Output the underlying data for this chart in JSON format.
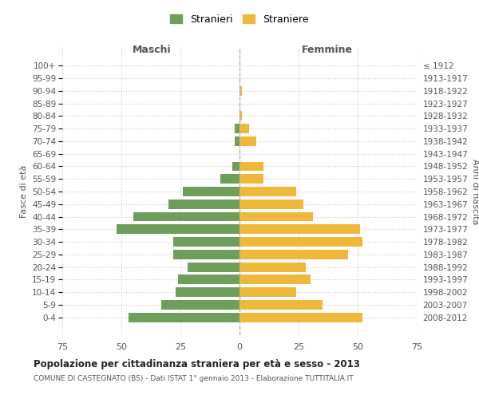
{
  "age_groups": [
    "100+",
    "95-99",
    "90-94",
    "85-89",
    "80-84",
    "75-79",
    "70-74",
    "65-69",
    "60-64",
    "55-59",
    "50-54",
    "45-49",
    "40-44",
    "35-39",
    "30-34",
    "25-29",
    "20-24",
    "15-19",
    "10-14",
    "5-9",
    "0-4"
  ],
  "birth_years": [
    "≤ 1912",
    "1913-1917",
    "1918-1922",
    "1923-1927",
    "1928-1932",
    "1933-1937",
    "1938-1942",
    "1943-1947",
    "1948-1952",
    "1953-1957",
    "1958-1962",
    "1963-1967",
    "1968-1972",
    "1973-1977",
    "1978-1982",
    "1983-1987",
    "1988-1992",
    "1993-1997",
    "1998-2002",
    "2003-2007",
    "2008-2012"
  ],
  "maschi": [
    0,
    0,
    0,
    0,
    0,
    2,
    2,
    0,
    3,
    8,
    24,
    30,
    45,
    52,
    28,
    28,
    22,
    26,
    27,
    33,
    47
  ],
  "femmine": [
    0,
    0,
    1,
    0,
    1,
    4,
    7,
    0,
    10,
    10,
    24,
    27,
    31,
    51,
    52,
    46,
    28,
    30,
    24,
    35,
    52
  ],
  "color_maschi": "#6d9e5a",
  "color_femmine": "#f0b83a",
  "color_dashed": "#b8b8a0",
  "xlim": 75,
  "title": "Popolazione per cittadinanza straniera per età e sesso - 2013",
  "subtitle": "COMUNE DI CASTEGNATO (BS) - Dati ISTAT 1° gennaio 2013 - Elaborazione TUTTITALIA.IT",
  "xlabel_left": "Maschi",
  "xlabel_right": "Femmine",
  "ylabel_left": "Fasce di età",
  "ylabel_right": "Anni di nascita",
  "legend_maschi": "Stranieri",
  "legend_femmine": "Straniere",
  "bg_color": "#ffffff",
  "grid_color": "#cccccc"
}
